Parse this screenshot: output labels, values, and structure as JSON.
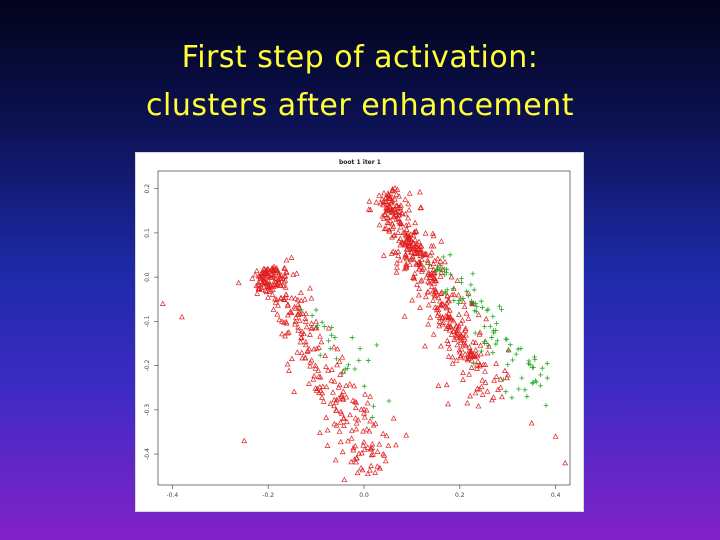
{
  "slide": {
    "title_line1": "First step of activation:",
    "title_line2": "clusters after enhancement",
    "title_color": "#ffff33"
  },
  "chart_data": {
    "type": "scatter",
    "title": "boot 1 iter 1",
    "xlabel": "",
    "ylabel": "",
    "xlim": [
      -0.43,
      0.43
    ],
    "ylim": [
      -0.47,
      0.24
    ],
    "x_ticks": [
      -0.4,
      -0.2,
      0.0,
      0.2,
      0.4
    ],
    "x_tick_labels": [
      "-0.4",
      "-0.2",
      "0.0",
      "0.2",
      "0.4"
    ],
    "y_ticks": [
      0.2,
      0.1,
      0.0,
      -0.1,
      -0.2,
      -0.3,
      -0.4
    ],
    "y_tick_labels": [
      "0.2",
      "0.1",
      "0.0",
      "-0.1",
      "-0.2",
      "-0.3",
      "-0.4"
    ],
    "grid": false,
    "legend": "none",
    "series": [
      {
        "marker": "triangle",
        "color": "#e02020",
        "clusters": [
          {
            "center": [
              -0.205,
              0.02
            ],
            "end": [
              -0.19,
              -0.03
            ],
            "spread": 0.012,
            "count": 70
          },
          {
            "center": [
              -0.2,
              0.02
            ],
            "end": [
              0.03,
              -0.44
            ],
            "spread": 0.02,
            "count": 280
          },
          {
            "center": [
              0.04,
              0.19
            ],
            "end": [
              0.27,
              -0.28
            ],
            "spread": 0.022,
            "count": 260
          },
          {
            "center": [
              0.1,
              0.08
            ],
            "end": [
              0.24,
              -0.22
            ],
            "spread": 0.008,
            "count": 130
          },
          {
            "center": [
              0.05,
              0.18
            ],
            "end": [
              0.1,
              0.02
            ],
            "spread": 0.01,
            "count": 90
          }
        ],
        "points": [
          [
            -0.42,
            -0.06
          ],
          [
            -0.38,
            -0.09
          ],
          [
            -0.25,
            -0.37
          ],
          [
            0.4,
            -0.36
          ],
          [
            0.42,
            -0.42
          ],
          [
            0.35,
            -0.33
          ]
        ]
      },
      {
        "marker": "plus",
        "color": "#22aa22",
        "clusters": [
          {
            "center": [
              0.15,
              0.04
            ],
            "end": [
              0.37,
              -0.25
            ],
            "spread": 0.02,
            "count": 90
          },
          {
            "center": [
              -0.13,
              -0.07
            ],
            "end": [
              0.06,
              -0.29
            ],
            "spread": 0.02,
            "count": 28
          }
        ],
        "points": [
          [
            0.34,
            -0.27
          ],
          [
            0.38,
            -0.29
          ]
        ]
      },
      {
        "marker": "square",
        "color": "#8b5a2b",
        "points": [
          [
            0.225,
            -0.06
          ]
        ]
      }
    ]
  }
}
